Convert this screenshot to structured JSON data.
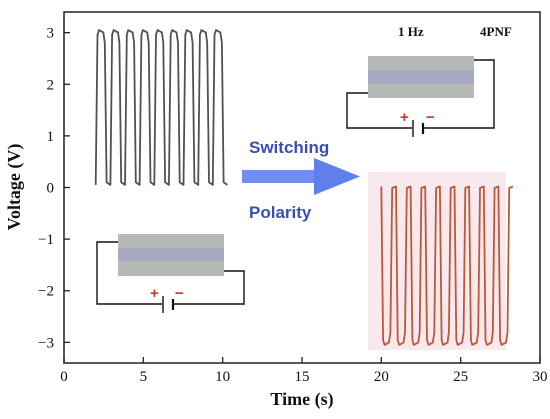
{
  "chart_data": {
    "type": "line",
    "xlabel": "Time (s)",
    "ylabel": "Voltage (V)",
    "xlim": [
      0,
      30
    ],
    "ylim": [
      -3.4,
      3.4
    ],
    "xticks": [
      0,
      5,
      10,
      15,
      20,
      25,
      30
    ],
    "yticks": [
      3,
      2,
      1,
      0,
      -1,
      -2,
      -3
    ],
    "grid": false,
    "annotations": {
      "frequency": "1 Hz",
      "sample": "4PNF",
      "arrow_top": "Switching",
      "arrow_bottom": "Polarity",
      "plus": "+",
      "minus": "−"
    },
    "series": [
      {
        "color": "#4d5450",
        "x_start": 2.0,
        "x_end": 10.3,
        "baseline": 0.05,
        "peak": 3.05,
        "cycles": 9
      },
      {
        "color": "#b85a38",
        "x_start": 20.0,
        "x_end": 28.3,
        "baseline": 0.02,
        "peak": -3.05,
        "cycles": 9
      }
    ],
    "colors": {
      "arrow": "#6f8ef0",
      "device_top": "#b7b9b7",
      "device_mid": "#a6a9bf",
      "highlight": "#f6d5e2"
    }
  }
}
